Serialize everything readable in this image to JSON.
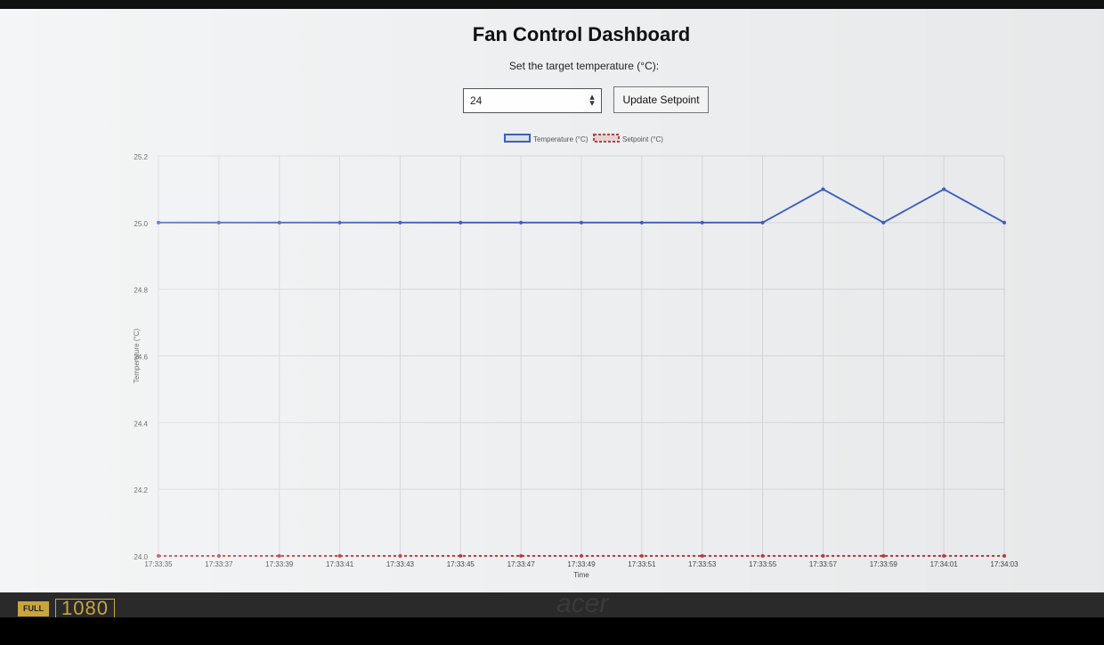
{
  "app": {
    "title": "Fan Control Dashboard",
    "prompt": "Set the target temperature (°C):"
  },
  "setpoint_input": {
    "value": "24"
  },
  "update_button": {
    "label": "Update Setpoint"
  },
  "device": {
    "mode_badge": "FULL",
    "resolution_badge": "1080",
    "brand": "acer"
  },
  "chart_data": {
    "type": "line",
    "xlabel": "Time",
    "ylabel": "Temperature (°C)",
    "ylim": [
      24.0,
      25.2
    ],
    "yticks": [
      "24.0",
      "24.2",
      "24.4",
      "24.6",
      "24.8",
      "25.0",
      "25.2"
    ],
    "x": [
      "17:33:35",
      "17:33:37",
      "17:33:39",
      "17:33:41",
      "17:33:43",
      "17:33:45",
      "17:33:47",
      "17:33:49",
      "17:33:51",
      "17:33:53",
      "17:33:55",
      "17:33:57",
      "17:33:59",
      "17:34:01",
      "17:34:03"
    ],
    "series": [
      {
        "name": "Temperature (°C)",
        "color": "#3a5fc4",
        "style": "solid",
        "values": [
          25.0,
          25.0,
          25.0,
          25.0,
          25.0,
          25.0,
          25.0,
          25.0,
          25.0,
          25.0,
          25.0,
          25.1,
          25.0,
          25.1,
          25.0
        ]
      },
      {
        "name": "Setpoint (°C)",
        "color": "#c23b3b",
        "style": "dashed",
        "values": [
          24,
          24,
          24,
          24,
          24,
          24,
          24,
          24,
          24,
          24,
          24,
          24,
          24,
          24,
          24
        ]
      }
    ],
    "legend": "top-center",
    "grid": true
  }
}
